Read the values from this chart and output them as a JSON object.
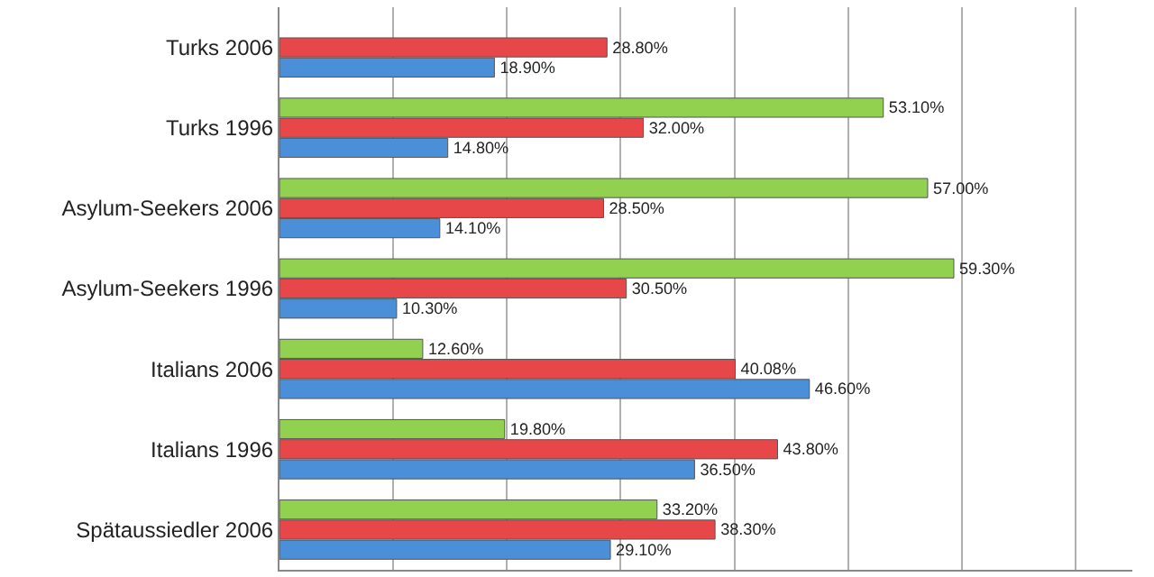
{
  "chart_data": {
    "type": "bar",
    "orientation": "horizontal",
    "categories": [
      "Turks 2006",
      "Turks 1996",
      "Asylum-Seekers 2006",
      "Asylum-Seekers 1996",
      "Italians 2006",
      "Italians 1996",
      "Spätaussiedler 2006"
    ],
    "series": [
      {
        "color": "#92d050",
        "values": [
          null,
          53.1,
          57.0,
          59.3,
          12.6,
          19.8,
          33.2
        ],
        "value_labels": [
          null,
          "53.10%",
          "57.00%",
          "59.30%",
          "12.60%",
          "19.80%",
          "33.20%"
        ]
      },
      {
        "color": "#e8474a",
        "values": [
          28.8,
          32.0,
          28.5,
          30.5,
          40.08,
          43.8,
          38.3
        ],
        "value_labels": [
          "28.80%",
          "32.00%",
          "28.50%",
          "30.50%",
          "40.08%",
          "43.80%",
          "38.30%"
        ]
      },
      {
        "color": "#4a8fd8",
        "values": [
          18.9,
          14.8,
          14.1,
          10.3,
          46.6,
          36.5,
          29.1
        ],
        "value_labels": [
          "18.90%",
          "14.80%",
          "14.10%",
          "10.30%",
          "46.60%",
          "36.50%",
          "29.10%"
        ]
      }
    ],
    "xlim": [
      0,
      75
    ],
    "xticks": [
      {
        "value": 0,
        "label": null
      },
      {
        "value": 10,
        "label": null
      },
      {
        "value": 20,
        "label": null
      },
      {
        "value": 30,
        "label": null
      },
      {
        "value": 40,
        "label": null
      },
      {
        "value": 50,
        "label": null
      },
      {
        "value": 60,
        "label": null
      },
      {
        "value": 70,
        "label": null
      }
    ],
    "grid": "x",
    "tick_labels": "y"
  }
}
